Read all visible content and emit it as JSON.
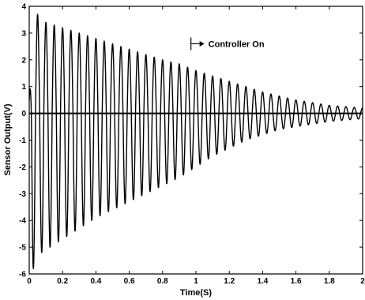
{
  "chart_data": {
    "type": "line",
    "title": "",
    "xlabel": "Time(S)",
    "ylabel": "Sensor Output(V)",
    "xlim": [
      0,
      2
    ],
    "ylim": [
      -6,
      4
    ],
    "xticks": [
      0,
      0.2,
      0.4,
      0.6,
      0.8,
      1,
      1.2,
      1.4,
      1.6,
      1.8,
      2
    ],
    "xtick_labels": [
      "0",
      "0.2",
      "0.4",
      "0.6",
      "0.8",
      "1",
      "1.2",
      "1.4",
      "1.6",
      "1.8",
      "2"
    ],
    "yticks": [
      -6,
      -5,
      -4,
      -3,
      -2,
      -1,
      0,
      1,
      2,
      3,
      4
    ],
    "ytick_labels": [
      "-6",
      "-5",
      "-4",
      "-3",
      "-2",
      "-1",
      "0",
      "1",
      "2",
      "3",
      "4"
    ],
    "grid": false,
    "zero_line": true,
    "series": [
      {
        "color": "#000000",
        "frequency_hz": 20,
        "envelope": {
          "t": [
            0,
            0.02,
            0.05,
            0.1,
            0.2,
            0.3,
            0.4,
            0.5,
            0.6,
            0.7,
            0.8,
            0.9,
            1.0,
            1.1,
            1.2,
            1.3,
            1.4,
            1.5,
            1.6,
            1.7,
            1.8,
            1.9,
            2.0
          ],
          "upper": [
            0.5,
            3.0,
            3.7,
            3.4,
            3.2,
            3.0,
            2.8,
            2.6,
            2.4,
            2.2,
            2.0,
            1.85,
            1.6,
            1.4,
            1.2,
            1.0,
            0.8,
            0.65,
            0.5,
            0.4,
            0.3,
            0.25,
            0.2
          ],
          "lower": [
            -0.5,
            -5.9,
            -5.3,
            -5.1,
            -4.7,
            -4.3,
            -3.9,
            -3.6,
            -3.3,
            -3.0,
            -2.7,
            -2.4,
            -2.0,
            -1.6,
            -1.3,
            -1.0,
            -0.8,
            -0.6,
            -0.5,
            -0.4,
            -0.3,
            -0.25,
            -0.2
          ]
        }
      }
    ],
    "annotations": [
      {
        "text": "Controller On",
        "x": 0.97,
        "y": 2.6
      }
    ]
  }
}
